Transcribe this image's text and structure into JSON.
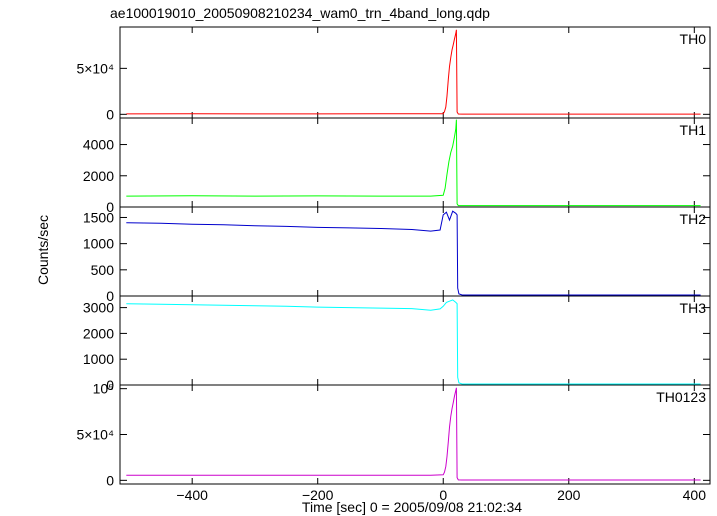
{
  "chart_data": {
    "type": "line",
    "title": "ae100019010_20050908210234_wam0_trn_4band_long.qdp",
    "xlabel": "Time [sec] 0 = 2005/09/08 21:02:34",
    "ylabel": "Counts/sec",
    "xlim": [
      -515,
      425
    ],
    "x_ticks": [
      -400,
      -200,
      0,
      200,
      400
    ],
    "x_tick_labels": [
      "−400",
      "−200",
      "0",
      "200",
      "400"
    ],
    "grid": false,
    "panels": [
      {
        "name": "TH0",
        "color": "#ff0000",
        "ylim": [
          -4000,
          95000
        ],
        "y_ticks": [
          0,
          50000
        ],
        "y_tick_labels": [
          "0",
          "5×10⁴"
        ],
        "series": {
          "x": [
            -505,
            -400,
            -300,
            -200,
            -100,
            -20,
            0,
            2,
            4,
            6,
            8,
            10,
            12,
            14,
            16,
            18,
            20,
            21,
            22,
            24,
            30,
            100,
            200,
            300,
            400,
            410
          ],
          "y": [
            500,
            520,
            510,
            500,
            520,
            530,
            700,
            3000,
            8000,
            20000,
            38000,
            52000,
            62000,
            70000,
            76000,
            82000,
            88000,
            92000,
            2500,
            300,
            250,
            250,
            250,
            250,
            250,
            250
          ]
        }
      },
      {
        "name": "TH1",
        "color": "#00ff00",
        "ylim": [
          0,
          5700
        ],
        "y_ticks": [
          0,
          2000,
          4000
        ],
        "y_tick_labels": [
          "0",
          "2000",
          "4000"
        ],
        "series": {
          "x": [
            -505,
            -400,
            -300,
            -200,
            -100,
            -20,
            0,
            3,
            6,
            9,
            12,
            15,
            18,
            20,
            21,
            22,
            24,
            30,
            100,
            200,
            300,
            400,
            410
          ],
          "y": [
            700,
            720,
            700,
            710,
            700,
            700,
            750,
            1200,
            2100,
            2900,
            3500,
            3900,
            4500,
            5000,
            5600,
            200,
            90,
            90,
            90,
            90,
            90,
            90,
            90
          ]
        }
      },
      {
        "name": "TH2",
        "color": "#0000cc",
        "ylim": [
          0,
          1700
        ],
        "y_ticks": [
          0,
          500,
          1000,
          1500
        ],
        "y_tick_labels": [
          "0",
          "500",
          "1000",
          "1500"
        ],
        "series": {
          "x": [
            -505,
            -450,
            -400,
            -350,
            -300,
            -250,
            -200,
            -150,
            -100,
            -50,
            -20,
            -5,
            0,
            5,
            10,
            15,
            20,
            22,
            23,
            25,
            30,
            100,
            200,
            300,
            400,
            410
          ],
          "y": [
            1400,
            1390,
            1370,
            1360,
            1340,
            1330,
            1310,
            1300,
            1290,
            1270,
            1240,
            1260,
            1550,
            1600,
            1450,
            1620,
            1580,
            1550,
            150,
            40,
            20,
            20,
            20,
            20,
            20,
            20
          ]
        }
      },
      {
        "name": "TH3",
        "color": "#00ffff",
        "ylim": [
          0,
          3450
        ],
        "y_ticks": [
          0,
          1000,
          2000,
          3000
        ],
        "y_tick_labels": [
          "0",
          "1000",
          "2000",
          "3000"
        ],
        "series": {
          "x": [
            -505,
            -450,
            -400,
            -350,
            -300,
            -250,
            -200,
            -150,
            -100,
            -50,
            -20,
            -5,
            0,
            5,
            10,
            15,
            20,
            22,
            23,
            25,
            30,
            100,
            200,
            300,
            400,
            410
          ],
          "y": [
            3150,
            3130,
            3110,
            3090,
            3070,
            3050,
            3020,
            3000,
            2980,
            2960,
            2900,
            2950,
            3050,
            3200,
            3250,
            3300,
            3200,
            3150,
            300,
            80,
            40,
            40,
            40,
            40,
            40,
            40
          ]
        }
      },
      {
        "name": "TH0123",
        "color": "#cc00cc",
        "ylim": [
          -4000,
          104000
        ],
        "y_ticks": [
          0,
          50000,
          100000
        ],
        "y_tick_labels": [
          "0",
          "5×10⁴",
          "10⁵"
        ],
        "series": {
          "x": [
            -505,
            -400,
            -300,
            -200,
            -100,
            -20,
            0,
            2,
            4,
            6,
            8,
            10,
            12,
            14,
            16,
            18,
            20,
            21,
            22,
            24,
            30,
            100,
            200,
            300,
            400,
            410
          ],
          "y": [
            5600,
            5650,
            5600,
            5550,
            5550,
            5500,
            6000,
            9000,
            15000,
            26000,
            42000,
            58000,
            70000,
            78000,
            85000,
            92000,
            98000,
            101000,
            3000,
            500,
            400,
            400,
            400,
            400,
            400,
            400
          ]
        }
      }
    ]
  }
}
